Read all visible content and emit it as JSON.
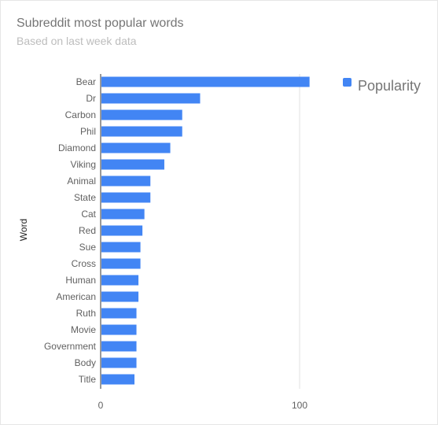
{
  "chart_data": {
    "type": "bar",
    "orientation": "horizontal",
    "title": "Subreddit most popular words",
    "subtitle": "Based on last week data",
    "xlabel": "",
    "ylabel": "Word",
    "xlim": [
      0,
      100
    ],
    "x_ticks": [
      0,
      100
    ],
    "grid": true,
    "legend_position": "top-right",
    "categories": [
      "Bear",
      "Dr",
      "Carbon",
      "Phil",
      "Diamond",
      "Viking",
      "Animal",
      "State",
      "Cat",
      "Red",
      "Sue",
      "Cross",
      "Human",
      "American",
      "Ruth",
      "Movie",
      "Government",
      "Body",
      "Title"
    ],
    "series": [
      {
        "name": "Popularity",
        "color": "#4285f4",
        "values": [
          105,
          50,
          41,
          41,
          35,
          32,
          25,
          25,
          22,
          21,
          20,
          20,
          19,
          19,
          18,
          18,
          18,
          18,
          17
        ]
      }
    ]
  }
}
